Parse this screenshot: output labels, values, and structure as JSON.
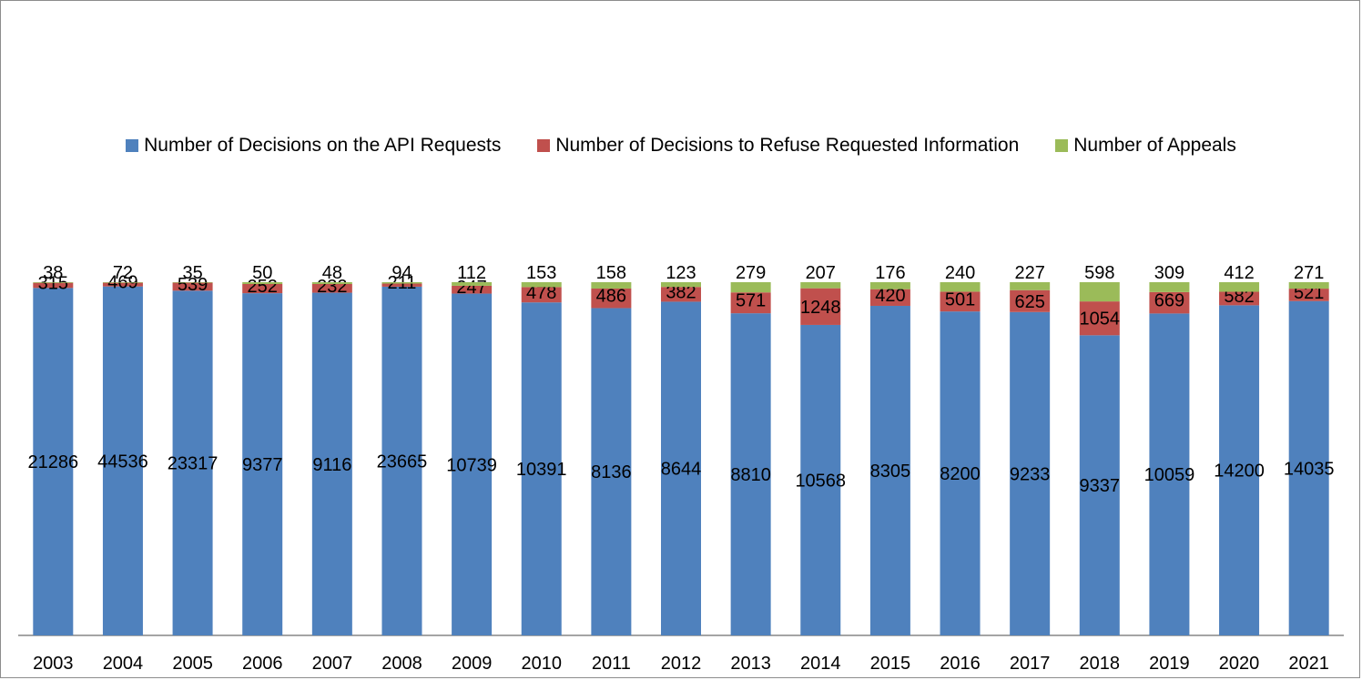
{
  "chart_data": {
    "type": "bar",
    "stacking": "percent",
    "title": "",
    "xlabel": "",
    "ylabel": "",
    "legend_position": "top",
    "grid": false,
    "categories": [
      "2003",
      "2004",
      "2005",
      "2006",
      "2007",
      "2008",
      "2009",
      "2010",
      "2011",
      "2012",
      "2013",
      "2014",
      "2015",
      "2016",
      "2017",
      "2018",
      "2019",
      "2020",
      "2021"
    ],
    "series": [
      {
        "name": "Number of Decisions on the API Requests",
        "color": "#4f81bd",
        "values": [
          21286,
          44536,
          23317,
          9377,
          9116,
          23665,
          10739,
          10391,
          8136,
          8644,
          8810,
          10568,
          8305,
          8200,
          9233,
          9337,
          10059,
          14200,
          14035
        ]
      },
      {
        "name": "Number of Decisions to Refuse Requested Information",
        "color": "#c0504d",
        "values": [
          315,
          469,
          539,
          252,
          232,
          211,
          247,
          478,
          486,
          382,
          571,
          1248,
          420,
          501,
          625,
          1054,
          669,
          582,
          521
        ]
      },
      {
        "name": "Number of Appeals",
        "color": "#9bbb59",
        "values": [
          38,
          72,
          35,
          50,
          48,
          94,
          112,
          153,
          158,
          123,
          279,
          207,
          176,
          240,
          227,
          598,
          309,
          412,
          271
        ]
      }
    ]
  }
}
